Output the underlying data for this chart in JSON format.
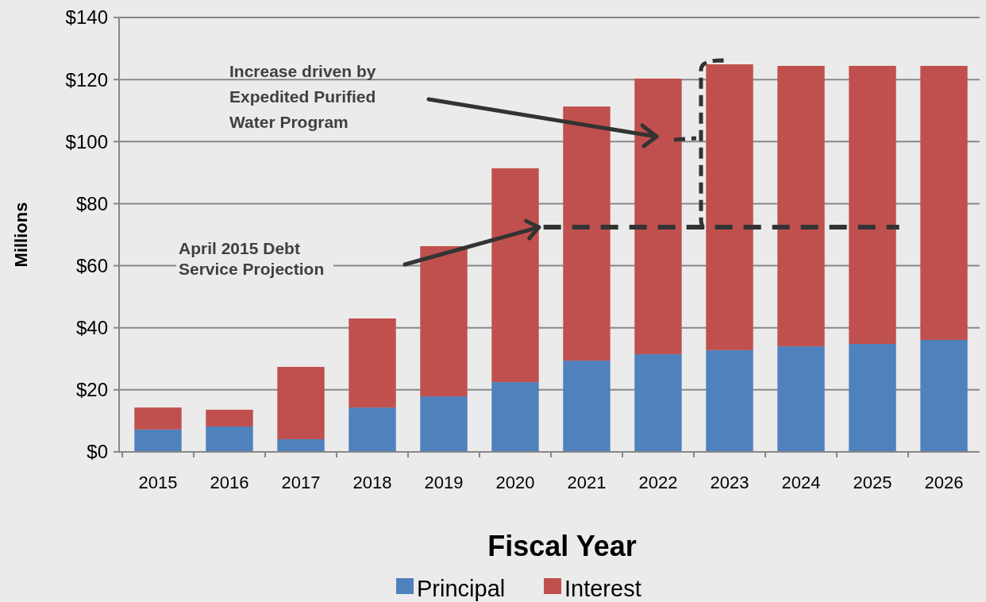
{
  "chart_data": {
    "type": "bar",
    "stacked": true,
    "xlabel": "Fiscal Year",
    "ylabel": "Millions",
    "categories": [
      "2015",
      "2016",
      "2017",
      "2018",
      "2019",
      "2020",
      "2021",
      "2022",
      "2023",
      "2024",
      "2025",
      "2026"
    ],
    "series": [
      {
        "name": "Principal",
        "color": "#4f81bd",
        "values": [
          7.2,
          8.2,
          4.1,
          14.3,
          17.9,
          22.5,
          29.4,
          31.5,
          32.8,
          34.0,
          34.8,
          36.1
        ]
      },
      {
        "name": "Interest",
        "color": "#c0504d",
        "values": [
          7.1,
          5.4,
          23.3,
          28.7,
          48.4,
          68.9,
          81.9,
          88.8,
          92.1,
          90.4,
          89.6,
          88.3
        ]
      }
    ],
    "ylim": [
      0,
      140
    ],
    "yticks": [
      {
        "value": 0,
        "label": "$0"
      },
      {
        "value": 20,
        "label": "$20"
      },
      {
        "value": 40,
        "label": "$40"
      },
      {
        "value": 60,
        "label": "$60"
      },
      {
        "value": 80,
        "label": "$80"
      },
      {
        "value": 100,
        "label": "$100"
      },
      {
        "value": 120,
        "label": "$120"
      },
      {
        "value": 140,
        "label": "$140"
      }
    ],
    "grid": "y",
    "legend": "bottom",
    "ref_lines": [
      {
        "axis": "y",
        "value": 72.4,
        "color": "#333333",
        "line_style": "dashed"
      }
    ],
    "annotations": [
      "Increase driven by Expedited Purified Water Program",
      "April 2015 Debt Service Projection"
    ]
  }
}
